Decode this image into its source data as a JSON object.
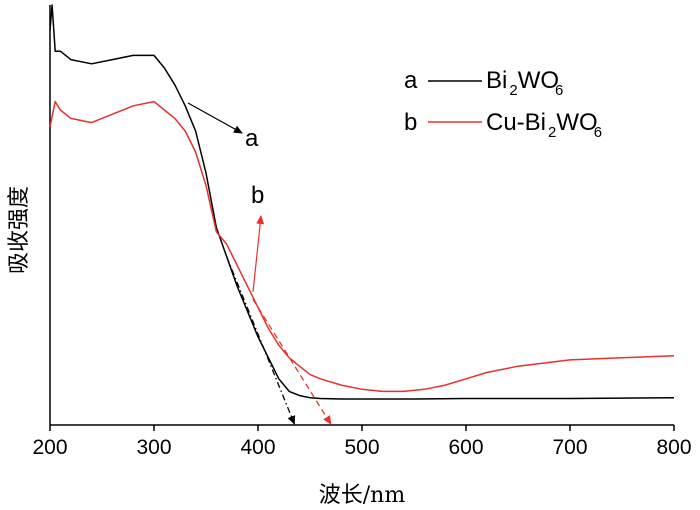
{
  "chart_data": {
    "type": "line",
    "title": "",
    "xlabel": "波长/nm",
    "ylabel": "吸收强度",
    "xlim": [
      200,
      800
    ],
    "ylim": [
      0,
      1.0
    ],
    "x_ticks": [
      200,
      300,
      400,
      500,
      600,
      700,
      800
    ],
    "y_ticks_shown": false,
    "grid": false,
    "legend_position": "top-right",
    "legend": [
      {
        "key": "a",
        "name_main": "Bi",
        "name_sub1": "2",
        "name_mid": "WO",
        "name_sub2": "6",
        "color": "#000000"
      },
      {
        "key": "b",
        "name_main": "Cu-Bi",
        "name_sub1": "2",
        "name_mid": "WO",
        "name_sub2": "6",
        "color": "#e8312e"
      }
    ],
    "series": [
      {
        "key": "a",
        "color": "#000000",
        "x": [
          200,
          202,
          205,
          210,
          220,
          240,
          260,
          280,
          300,
          310,
          320,
          330,
          340,
          350,
          360,
          370,
          380,
          390,
          400,
          410,
          420,
          430,
          440,
          450,
          460,
          480,
          500,
          550,
          600,
          650,
          700,
          750,
          800
        ],
        "y": [
          0.94,
          1.0,
          0.89,
          0.89,
          0.87,
          0.86,
          0.87,
          0.88,
          0.88,
          0.85,
          0.81,
          0.76,
          0.7,
          0.6,
          0.47,
          0.4,
          0.33,
          0.27,
          0.21,
          0.16,
          0.11,
          0.08,
          0.07,
          0.065,
          0.063,
          0.062,
          0.062,
          0.062,
          0.063,
          0.063,
          0.063,
          0.064,
          0.065
        ]
      },
      {
        "key": "b",
        "color": "#e8312e",
        "x": [
          200,
          205,
          210,
          220,
          240,
          260,
          280,
          300,
          310,
          320,
          330,
          340,
          350,
          360,
          370,
          380,
          390,
          400,
          410,
          420,
          430,
          440,
          450,
          460,
          480,
          500,
          520,
          540,
          560,
          580,
          600,
          620,
          650,
          700,
          750,
          800
        ],
        "y": [
          0.71,
          0.77,
          0.75,
          0.73,
          0.72,
          0.74,
          0.76,
          0.77,
          0.75,
          0.73,
          0.7,
          0.65,
          0.57,
          0.46,
          0.43,
          0.38,
          0.33,
          0.28,
          0.23,
          0.19,
          0.16,
          0.14,
          0.12,
          0.11,
          0.095,
          0.085,
          0.08,
          0.08,
          0.085,
          0.095,
          0.11,
          0.125,
          0.14,
          0.155,
          0.16,
          0.165
        ]
      }
    ],
    "annotations": [
      {
        "label": "a",
        "color": "#000000"
      },
      {
        "label": "b",
        "color": "#e8312e"
      }
    ],
    "extrapolations": [
      {
        "series": "a",
        "from": [
          370,
          0.4
        ],
        "to": [
          435,
          0.0
        ]
      },
      {
        "series": "b",
        "from": [
          395,
          0.3
        ],
        "to": [
          470,
          0.0
        ]
      }
    ]
  }
}
